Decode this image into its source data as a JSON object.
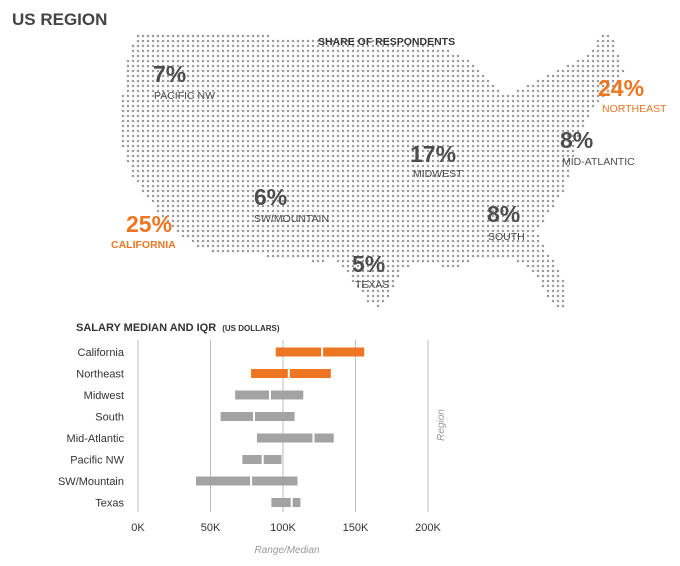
{
  "page_title": "US REGION",
  "map": {
    "title": "SHARE OF RESPONDENTS",
    "dot_color": "#9a9a9a",
    "regions": [
      {
        "pct": "7%",
        "name": "PACIFIC NW",
        "highlight": false
      },
      {
        "pct": "24%",
        "name": "NORTHEAST",
        "highlight": true
      },
      {
        "pct": "8%",
        "name": "MID-ATLANTIC",
        "highlight": false
      },
      {
        "pct": "17%",
        "name": "MIDWEST",
        "highlight": false
      },
      {
        "pct": "6%",
        "name": "SW/MOUNTAIN",
        "highlight": false
      },
      {
        "pct": "25%",
        "name": "CALIFORNIA",
        "highlight": true
      },
      {
        "pct": "8%",
        "name": "SOUTH",
        "highlight": false
      },
      {
        "pct": "5%",
        "name": "TEXAS",
        "highlight": false
      }
    ]
  },
  "colors": {
    "highlight": "#ee7623",
    "normal_text": "#4d4d4d",
    "bar_normal": "#a3a3a3",
    "grid": "#bbbbbb"
  },
  "chart_data": {
    "type": "bar",
    "orientation": "horizontal-range",
    "title": "SALARY MEDIAN AND IQR",
    "title_suffix": "(US DOLLARS)",
    "xlabel": "Range/Median",
    "ylabel": "Region",
    "xlim": [
      0,
      200000
    ],
    "x_ticks": [
      0,
      50000,
      100000,
      150000,
      200000
    ],
    "x_tick_labels": [
      "0K",
      "50K",
      "100K",
      "150K",
      "200K"
    ],
    "grid": true,
    "categories": [
      "California",
      "Northeast",
      "Midwest",
      "South",
      "Mid-Atlantic",
      "Pacific NW",
      "SW/Mountain",
      "Texas"
    ],
    "q1": [
      95000,
      78000,
      67000,
      57000,
      82000,
      72000,
      40000,
      92000
    ],
    "median": [
      127000,
      104000,
      91000,
      80000,
      121000,
      86000,
      78000,
      106000
    ],
    "q3": [
      156000,
      133000,
      114000,
      108000,
      135000,
      99000,
      110000,
      112000
    ],
    "highlight": [
      true,
      true,
      false,
      false,
      false,
      false,
      false,
      false
    ]
  }
}
